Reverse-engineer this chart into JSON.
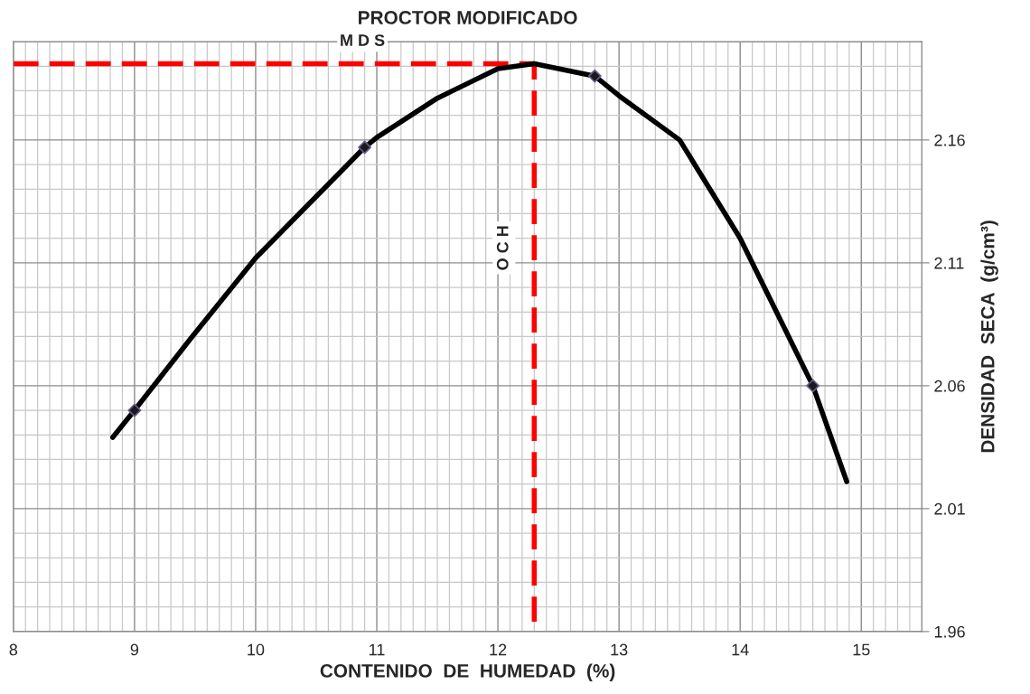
{
  "chart_data": {
    "type": "line",
    "title": "PROCTOR MODIFICADO",
    "xlabel": "CONTENIDO  DE  HUMEDAD  (%)",
    "ylabel": "DENSIDAD  SECA  (g/cm³)",
    "xlim": [
      8,
      15.5
    ],
    "xticks": [
      8,
      9,
      10,
      11,
      12,
      13,
      14,
      15
    ],
    "ylim": [
      1.96,
      2.2
    ],
    "yticks": [
      1.96,
      2.01,
      2.06,
      2.11,
      2.16
    ],
    "grid": true,
    "series": [
      {
        "color": "#000000",
        "x": [
          8.82,
          9.0,
          9.46,
          10.0,
          10.5,
          10.9,
          11.0,
          11.5,
          12.0,
          12.3,
          12.8,
          13.0,
          13.5,
          14.0,
          14.3,
          14.6,
          14.88
        ],
        "values": [
          2.039,
          2.05,
          2.079,
          2.112,
          2.137,
          2.157,
          2.161,
          2.177,
          2.189,
          2.191,
          2.186,
          2.178,
          2.16,
          2.12,
          2.09,
          2.06,
          2.021
        ]
      },
      {
        "type": "scatter",
        "marker": "diamond",
        "color": "#1a1a1a",
        "x": [
          9.0,
          10.9,
          12.8,
          14.6
        ],
        "values": [
          2.05,
          2.157,
          2.186,
          2.06
        ]
      },
      {
        "name": "M D S",
        "line_style": "dashed",
        "color": "#ff0000",
        "x": [
          8.0,
          12.3
        ],
        "values": [
          2.191,
          2.191
        ]
      },
      {
        "name": "O C H",
        "line_style": "dashed",
        "color": "#ff0000",
        "x": [
          12.3,
          12.3
        ],
        "values": [
          1.964,
          2.191
        ]
      }
    ]
  }
}
